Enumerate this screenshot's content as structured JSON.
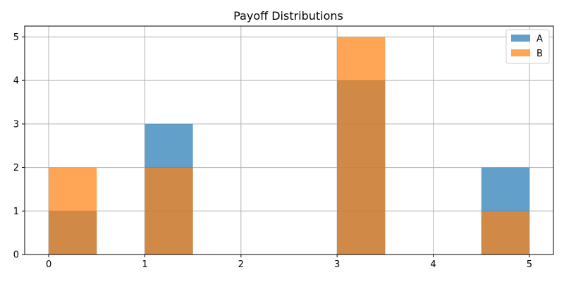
{
  "chart_data": {
    "type": "bar",
    "title": "Payoff Distributions",
    "xlabel": "",
    "ylabel": "",
    "xlim": [
      -0.25,
      5.25
    ],
    "ylim": [
      0,
      5.25
    ],
    "xticks": [
      "0",
      "1",
      "2",
      "3",
      "4",
      "5"
    ],
    "yticks": [
      "0",
      "1",
      "2",
      "3",
      "4",
      "5"
    ],
    "grid": true,
    "legend_position": "top-right",
    "bin_edges": [
      0,
      0.5,
      1,
      1.5,
      2,
      2.5,
      3,
      3.5,
      4,
      4.5,
      5
    ],
    "series": [
      {
        "name": "A",
        "color": "#1f77b4",
        "counts": [
          1,
          0,
          3,
          0,
          0,
          0,
          4,
          0,
          0,
          2
        ]
      },
      {
        "name": "B",
        "color": "#ff7f0e",
        "counts": [
          2,
          0,
          2,
          0,
          0,
          0,
          5,
          0,
          0,
          1
        ]
      }
    ]
  }
}
